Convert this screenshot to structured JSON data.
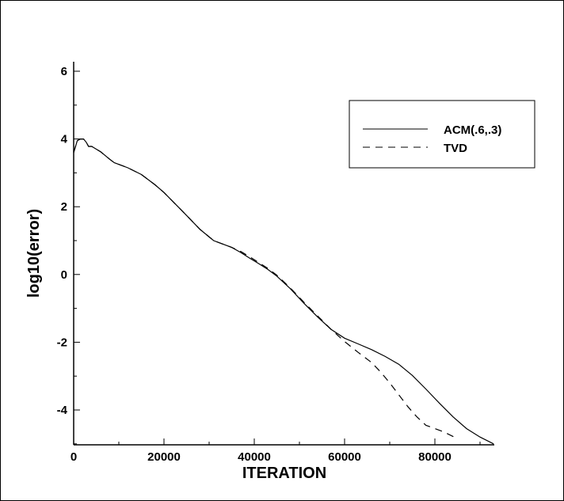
{
  "chart_data": {
    "type": "line",
    "title": "",
    "xlabel": "ITERATION",
    "ylabel": "log10(error)",
    "xlim": [
      0,
      93000
    ],
    "ylim": [
      -5,
      6.2
    ],
    "grid": false,
    "legend_position": "top-right",
    "x_ticks": [
      0,
      20000,
      40000,
      60000,
      80000
    ],
    "x_tick_labels": [
      "0",
      "20000",
      "40000",
      "60000",
      "80000"
    ],
    "y_ticks": [
      -4,
      -2,
      0,
      2,
      4,
      6
    ],
    "y_tick_labels": [
      "-4",
      "-2",
      "0",
      "2",
      "4",
      "6"
    ],
    "series": [
      {
        "name": "ACM(.6,.3)",
        "style": "solid",
        "color": "#000000",
        "x": [
          0,
          800,
          1500,
          2200,
          2800,
          3300,
          4000,
          6000,
          8000,
          9000,
          10000,
          12000,
          15000,
          18000,
          20000,
          24000,
          28000,
          31000,
          33000,
          35000,
          37000,
          39000,
          41000,
          43000,
          45000,
          48000,
          51000,
          54000,
          57000,
          60000,
          63000,
          66000,
          69000,
          72000,
          75000,
          78000,
          81000,
          84000,
          87000,
          90000,
          93000
        ],
        "y": [
          3.6,
          3.95,
          4.0,
          4.0,
          3.9,
          3.78,
          3.78,
          3.62,
          3.4,
          3.3,
          3.25,
          3.15,
          2.95,
          2.65,
          2.42,
          1.88,
          1.33,
          1.0,
          0.9,
          0.8,
          0.65,
          0.48,
          0.32,
          0.15,
          -0.05,
          -0.42,
          -0.85,
          -1.25,
          -1.62,
          -1.88,
          -2.05,
          -2.22,
          -2.42,
          -2.65,
          -2.98,
          -3.38,
          -3.8,
          -4.2,
          -4.55,
          -4.8,
          -5.0
        ]
      },
      {
        "name": "TVD",
        "style": "dashed",
        "color": "#000000",
        "x": [
          0,
          800,
          1500,
          2200,
          2800,
          3300,
          4000,
          6000,
          8000,
          9000,
          10000,
          12000,
          15000,
          18000,
          20000,
          24000,
          28000,
          31000,
          33000,
          35000,
          37000,
          39000,
          41000,
          43000,
          45000,
          48000,
          51000,
          54000,
          57000,
          60000,
          63000,
          66000,
          68000,
          70000,
          72000,
          74000,
          76000,
          78000,
          80000,
          82000,
          84000,
          85000
        ],
        "y": [
          3.6,
          3.95,
          4.0,
          4.0,
          3.9,
          3.78,
          3.78,
          3.62,
          3.4,
          3.3,
          3.25,
          3.15,
          2.95,
          2.65,
          2.42,
          1.88,
          1.33,
          1.0,
          0.9,
          0.8,
          0.68,
          0.52,
          0.35,
          0.18,
          -0.02,
          -0.4,
          -0.82,
          -1.22,
          -1.62,
          -1.98,
          -2.3,
          -2.6,
          -2.88,
          -3.2,
          -3.55,
          -3.9,
          -4.2,
          -4.45,
          -4.55,
          -4.65,
          -4.78,
          -4.85
        ]
      }
    ]
  }
}
